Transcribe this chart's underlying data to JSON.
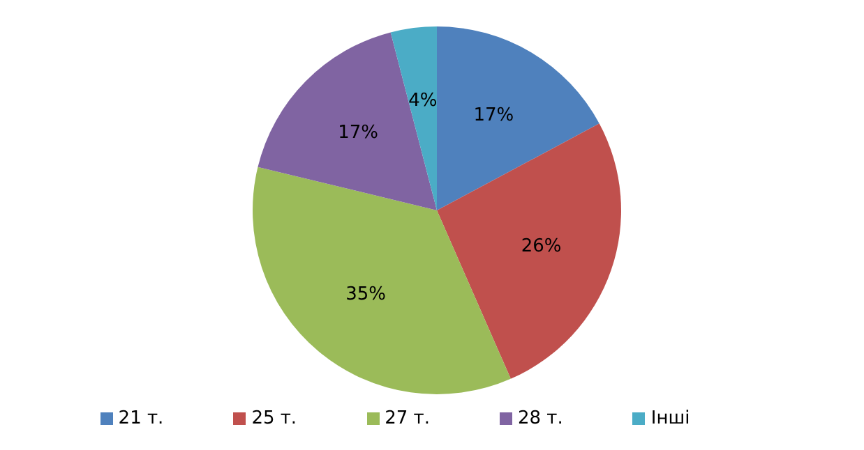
{
  "chart_data": {
    "type": "pie",
    "categories": [
      "21 т.",
      "25 т.",
      "27 т.",
      "28 т.",
      "Інші"
    ],
    "values": [
      17,
      26,
      35,
      17,
      4
    ],
    "colors": [
      "#4f81bd",
      "#c0504d",
      "#9bbb59",
      "#8064a2",
      "#4bacc6"
    ],
    "value_labels": [
      "17%",
      "26%",
      "35%",
      "17%",
      "4%"
    ],
    "legend": "bottom"
  }
}
